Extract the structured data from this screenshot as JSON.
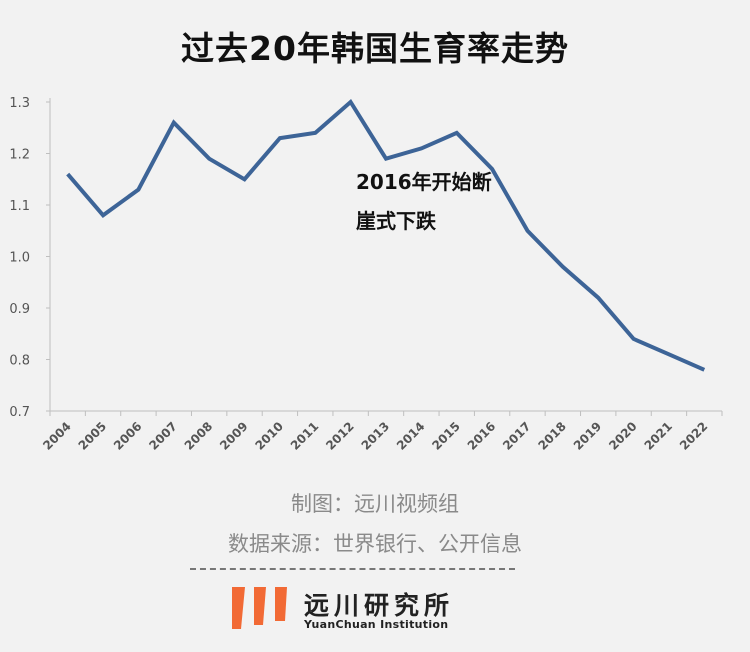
{
  "chart_data": {
    "type": "line",
    "title": "过去20年韩国生育率走势",
    "x": [
      "2004",
      "2005",
      "2006",
      "2007",
      "2008",
      "2009",
      "2010",
      "2011",
      "2012",
      "2013",
      "2014",
      "2015",
      "2016",
      "2017",
      "2018",
      "2019",
      "2020",
      "2021",
      "2022"
    ],
    "series": [
      {
        "values": [
          1.16,
          1.08,
          1.13,
          1.26,
          1.19,
          1.15,
          1.23,
          1.24,
          1.3,
          1.19,
          1.21,
          1.24,
          1.17,
          1.05,
          0.98,
          0.92,
          0.84,
          0.81,
          0.78
        ]
      }
    ],
    "yticks": [
      "0.7",
      "0.8",
      "0.9",
      "1.0",
      "1.1",
      "1.2",
      "1.3"
    ],
    "ylim": [
      0.7,
      1.3
    ],
    "grid": false,
    "line_color": "#3d6497",
    "annotation": [
      "2016年开始断",
      "崖式下跌"
    ]
  },
  "credits": {
    "maker": "制图：远川视频组",
    "source": "数据来源：世界银行、公开信息"
  },
  "logo": {
    "cn": "远川研究所",
    "en": "YuanChuan Institution",
    "accent_color": "#f26a35"
  }
}
